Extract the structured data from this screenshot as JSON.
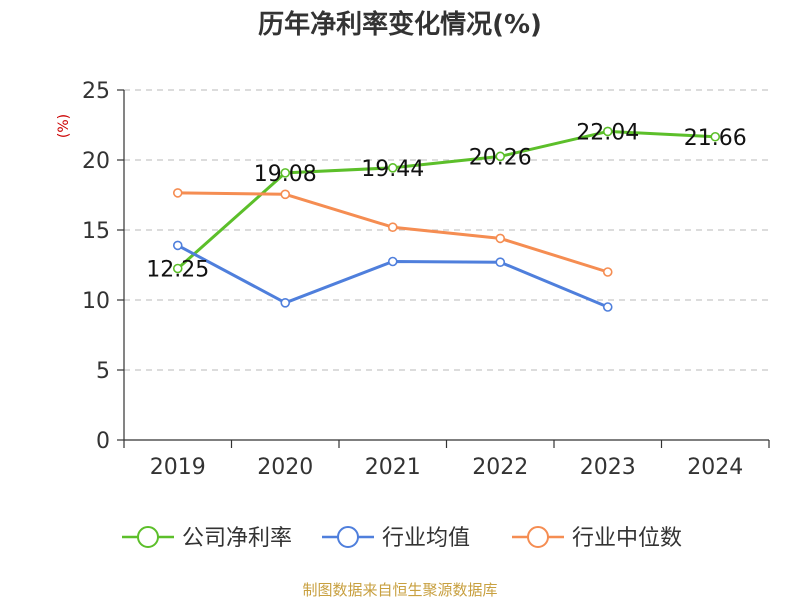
{
  "chart_data": {
    "type": "line",
    "title": "历年净利率变化情况(%)",
    "ylabel": "(%)",
    "xlabel": "",
    "categories": [
      "2019",
      "2020",
      "2021",
      "2022",
      "2023",
      "2024"
    ],
    "ylim": [
      0,
      25
    ],
    "yticks": [
      0,
      5,
      10,
      15,
      20,
      25
    ],
    "grid": true,
    "legend_position": "bottom",
    "series": [
      {
        "name": "公司净利率",
        "color": "#5cbf2a",
        "values": [
          12.25,
          19.08,
          19.44,
          20.26,
          22.04,
          21.66
        ],
        "labels": [
          "12.25",
          "19.08",
          "19.44",
          "20.26",
          "22.04",
          "21.66"
        ],
        "show_labels": true
      },
      {
        "name": "行业均值",
        "color": "#4f7fdc",
        "values": [
          13.9,
          9.8,
          12.75,
          12.7,
          9.5,
          null
        ],
        "show_labels": false
      },
      {
        "name": "行业中位数",
        "color": "#f58d52",
        "values": [
          17.65,
          17.55,
          15.2,
          14.4,
          12.0,
          null
        ],
        "show_labels": false
      }
    ]
  },
  "footer": {
    "source": "制图数据来自恒生聚源数据库"
  }
}
